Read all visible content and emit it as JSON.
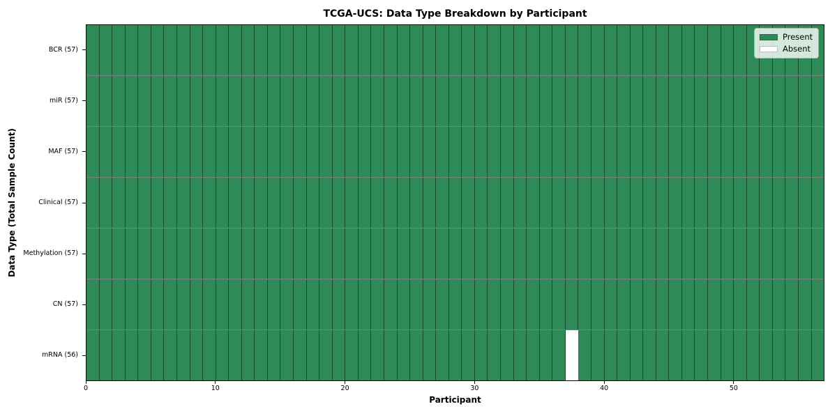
{
  "chart_data": {
    "type": "heatmap",
    "title": "TCGA-UCS: Data Type Breakdown by Participant",
    "xlabel": "Participant",
    "ylabel": "Data Type (Total Sample Count)",
    "n_participants": 57,
    "xlim": [
      0,
      57
    ],
    "x_ticks": [
      0,
      10,
      20,
      30,
      40,
      50
    ],
    "grid": "cell-borders",
    "legend_position": "upper right",
    "legend_labels": [
      "Present",
      "Absent"
    ],
    "colors": {
      "present": "#2e8b57",
      "absent": "#ffffff",
      "cell_edge": "rgba(0,0,0,0.45)"
    },
    "rows": [
      {
        "data_type": "BCR",
        "tick_label": "BCR (57)",
        "sample_count": 57,
        "absent_participants": []
      },
      {
        "data_type": "miR",
        "tick_label": "miR (57)",
        "sample_count": 57,
        "absent_participants": []
      },
      {
        "data_type": "MAF",
        "tick_label": "MAF (57)",
        "sample_count": 57,
        "absent_participants": []
      },
      {
        "data_type": "Clinical",
        "tick_label": "Clinical (57)",
        "sample_count": 57,
        "absent_participants": []
      },
      {
        "data_type": "Methylation",
        "tick_label": "Methylation (57)",
        "sample_count": 57,
        "absent_participants": []
      },
      {
        "data_type": "CN",
        "tick_label": "CN (57)",
        "sample_count": 57,
        "absent_participants": []
      },
      {
        "data_type": "mRNA",
        "tick_label": "mRNA (56)",
        "sample_count": 56,
        "absent_participants": [
          37
        ]
      }
    ]
  }
}
